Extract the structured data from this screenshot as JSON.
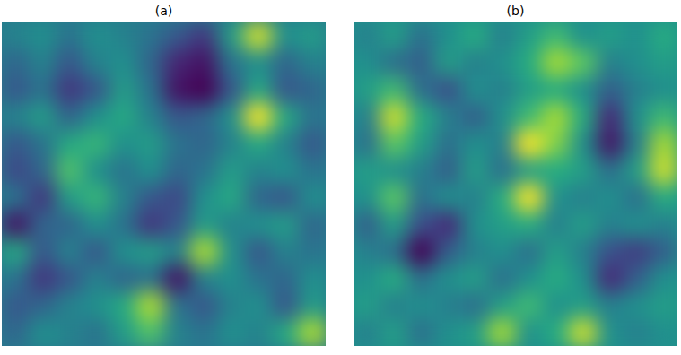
{
  "chart_data": [
    {
      "type": "heatmap",
      "title": "(a)",
      "tick_labels": false,
      "cells": [
        [
          0.45,
          0.5,
          0.4,
          0.5,
          0.45,
          0.4,
          0.3,
          0.2,
          0.55,
          0.9,
          0.5,
          0.55
        ],
        [
          0.35,
          0.45,
          0.3,
          0.45,
          0.5,
          0.35,
          0.15,
          0.1,
          0.4,
          0.5,
          0.35,
          0.45
        ],
        [
          0.3,
          0.4,
          0.2,
          0.3,
          0.55,
          0.4,
          0.1,
          0.05,
          0.3,
          0.6,
          0.3,
          0.35
        ],
        [
          0.45,
          0.55,
          0.35,
          0.5,
          0.6,
          0.45,
          0.3,
          0.35,
          0.5,
          0.95,
          0.6,
          0.4
        ],
        [
          0.3,
          0.4,
          0.6,
          0.65,
          0.5,
          0.55,
          0.4,
          0.35,
          0.45,
          0.6,
          0.45,
          0.3
        ],
        [
          0.25,
          0.35,
          0.7,
          0.5,
          0.4,
          0.5,
          0.35,
          0.4,
          0.55,
          0.45,
          0.5,
          0.4
        ],
        [
          0.4,
          0.2,
          0.55,
          0.65,
          0.45,
          0.3,
          0.25,
          0.5,
          0.6,
          0.35,
          0.3,
          0.5
        ],
        [
          0.1,
          0.35,
          0.35,
          0.5,
          0.4,
          0.2,
          0.3,
          0.55,
          0.45,
          0.5,
          0.55,
          0.35
        ],
        [
          0.6,
          0.3,
          0.45,
          0.3,
          0.5,
          0.55,
          0.45,
          0.85,
          0.5,
          0.3,
          0.45,
          0.4
        ],
        [
          0.4,
          0.2,
          0.3,
          0.45,
          0.35,
          0.4,
          0.1,
          0.45,
          0.5,
          0.4,
          0.35,
          0.5
        ],
        [
          0.3,
          0.35,
          0.45,
          0.5,
          0.6,
          0.85,
          0.4,
          0.3,
          0.45,
          0.5,
          0.3,
          0.55
        ],
        [
          0.35,
          0.5,
          0.45,
          0.4,
          0.55,
          0.7,
          0.45,
          0.4,
          0.5,
          0.45,
          0.6,
          0.85
        ]
      ]
    },
    {
      "type": "heatmap",
      "title": "(b)",
      "tick_labels": false,
      "cells": [
        [
          0.45,
          0.55,
          0.4,
          0.5,
          0.6,
          0.45,
          0.55,
          0.65,
          0.5,
          0.55,
          0.5,
          0.6
        ],
        [
          0.5,
          0.4,
          0.35,
          0.55,
          0.45,
          0.5,
          0.6,
          0.8,
          0.7,
          0.45,
          0.5,
          0.55
        ],
        [
          0.55,
          0.65,
          0.4,
          0.3,
          0.5,
          0.45,
          0.55,
          0.6,
          0.5,
          0.35,
          0.45,
          0.5
        ],
        [
          0.45,
          0.85,
          0.6,
          0.45,
          0.35,
          0.5,
          0.65,
          0.8,
          0.6,
          0.2,
          0.5,
          0.65
        ],
        [
          0.4,
          0.7,
          0.55,
          0.4,
          0.5,
          0.45,
          0.9,
          0.75,
          0.5,
          0.15,
          0.45,
          0.8
        ],
        [
          0.55,
          0.5,
          0.45,
          0.35,
          0.55,
          0.4,
          0.55,
          0.6,
          0.55,
          0.4,
          0.55,
          0.85
        ],
        [
          0.5,
          0.7,
          0.4,
          0.5,
          0.45,
          0.6,
          0.9,
          0.5,
          0.45,
          0.5,
          0.4,
          0.6
        ],
        [
          0.35,
          0.55,
          0.3,
          0.2,
          0.5,
          0.55,
          0.6,
          0.45,
          0.55,
          0.45,
          0.5,
          0.45
        ],
        [
          0.45,
          0.4,
          0.1,
          0.35,
          0.45,
          0.5,
          0.4,
          0.55,
          0.45,
          0.3,
          0.25,
          0.35
        ],
        [
          0.5,
          0.6,
          0.4,
          0.5,
          0.55,
          0.4,
          0.5,
          0.6,
          0.5,
          0.2,
          0.35,
          0.5
        ],
        [
          0.55,
          0.45,
          0.5,
          0.45,
          0.4,
          0.55,
          0.65,
          0.5,
          0.55,
          0.45,
          0.5,
          0.55
        ],
        [
          0.45,
          0.55,
          0.4,
          0.5,
          0.55,
          0.8,
          0.5,
          0.6,
          0.85,
          0.5,
          0.45,
          0.5
        ]
      ]
    }
  ]
}
